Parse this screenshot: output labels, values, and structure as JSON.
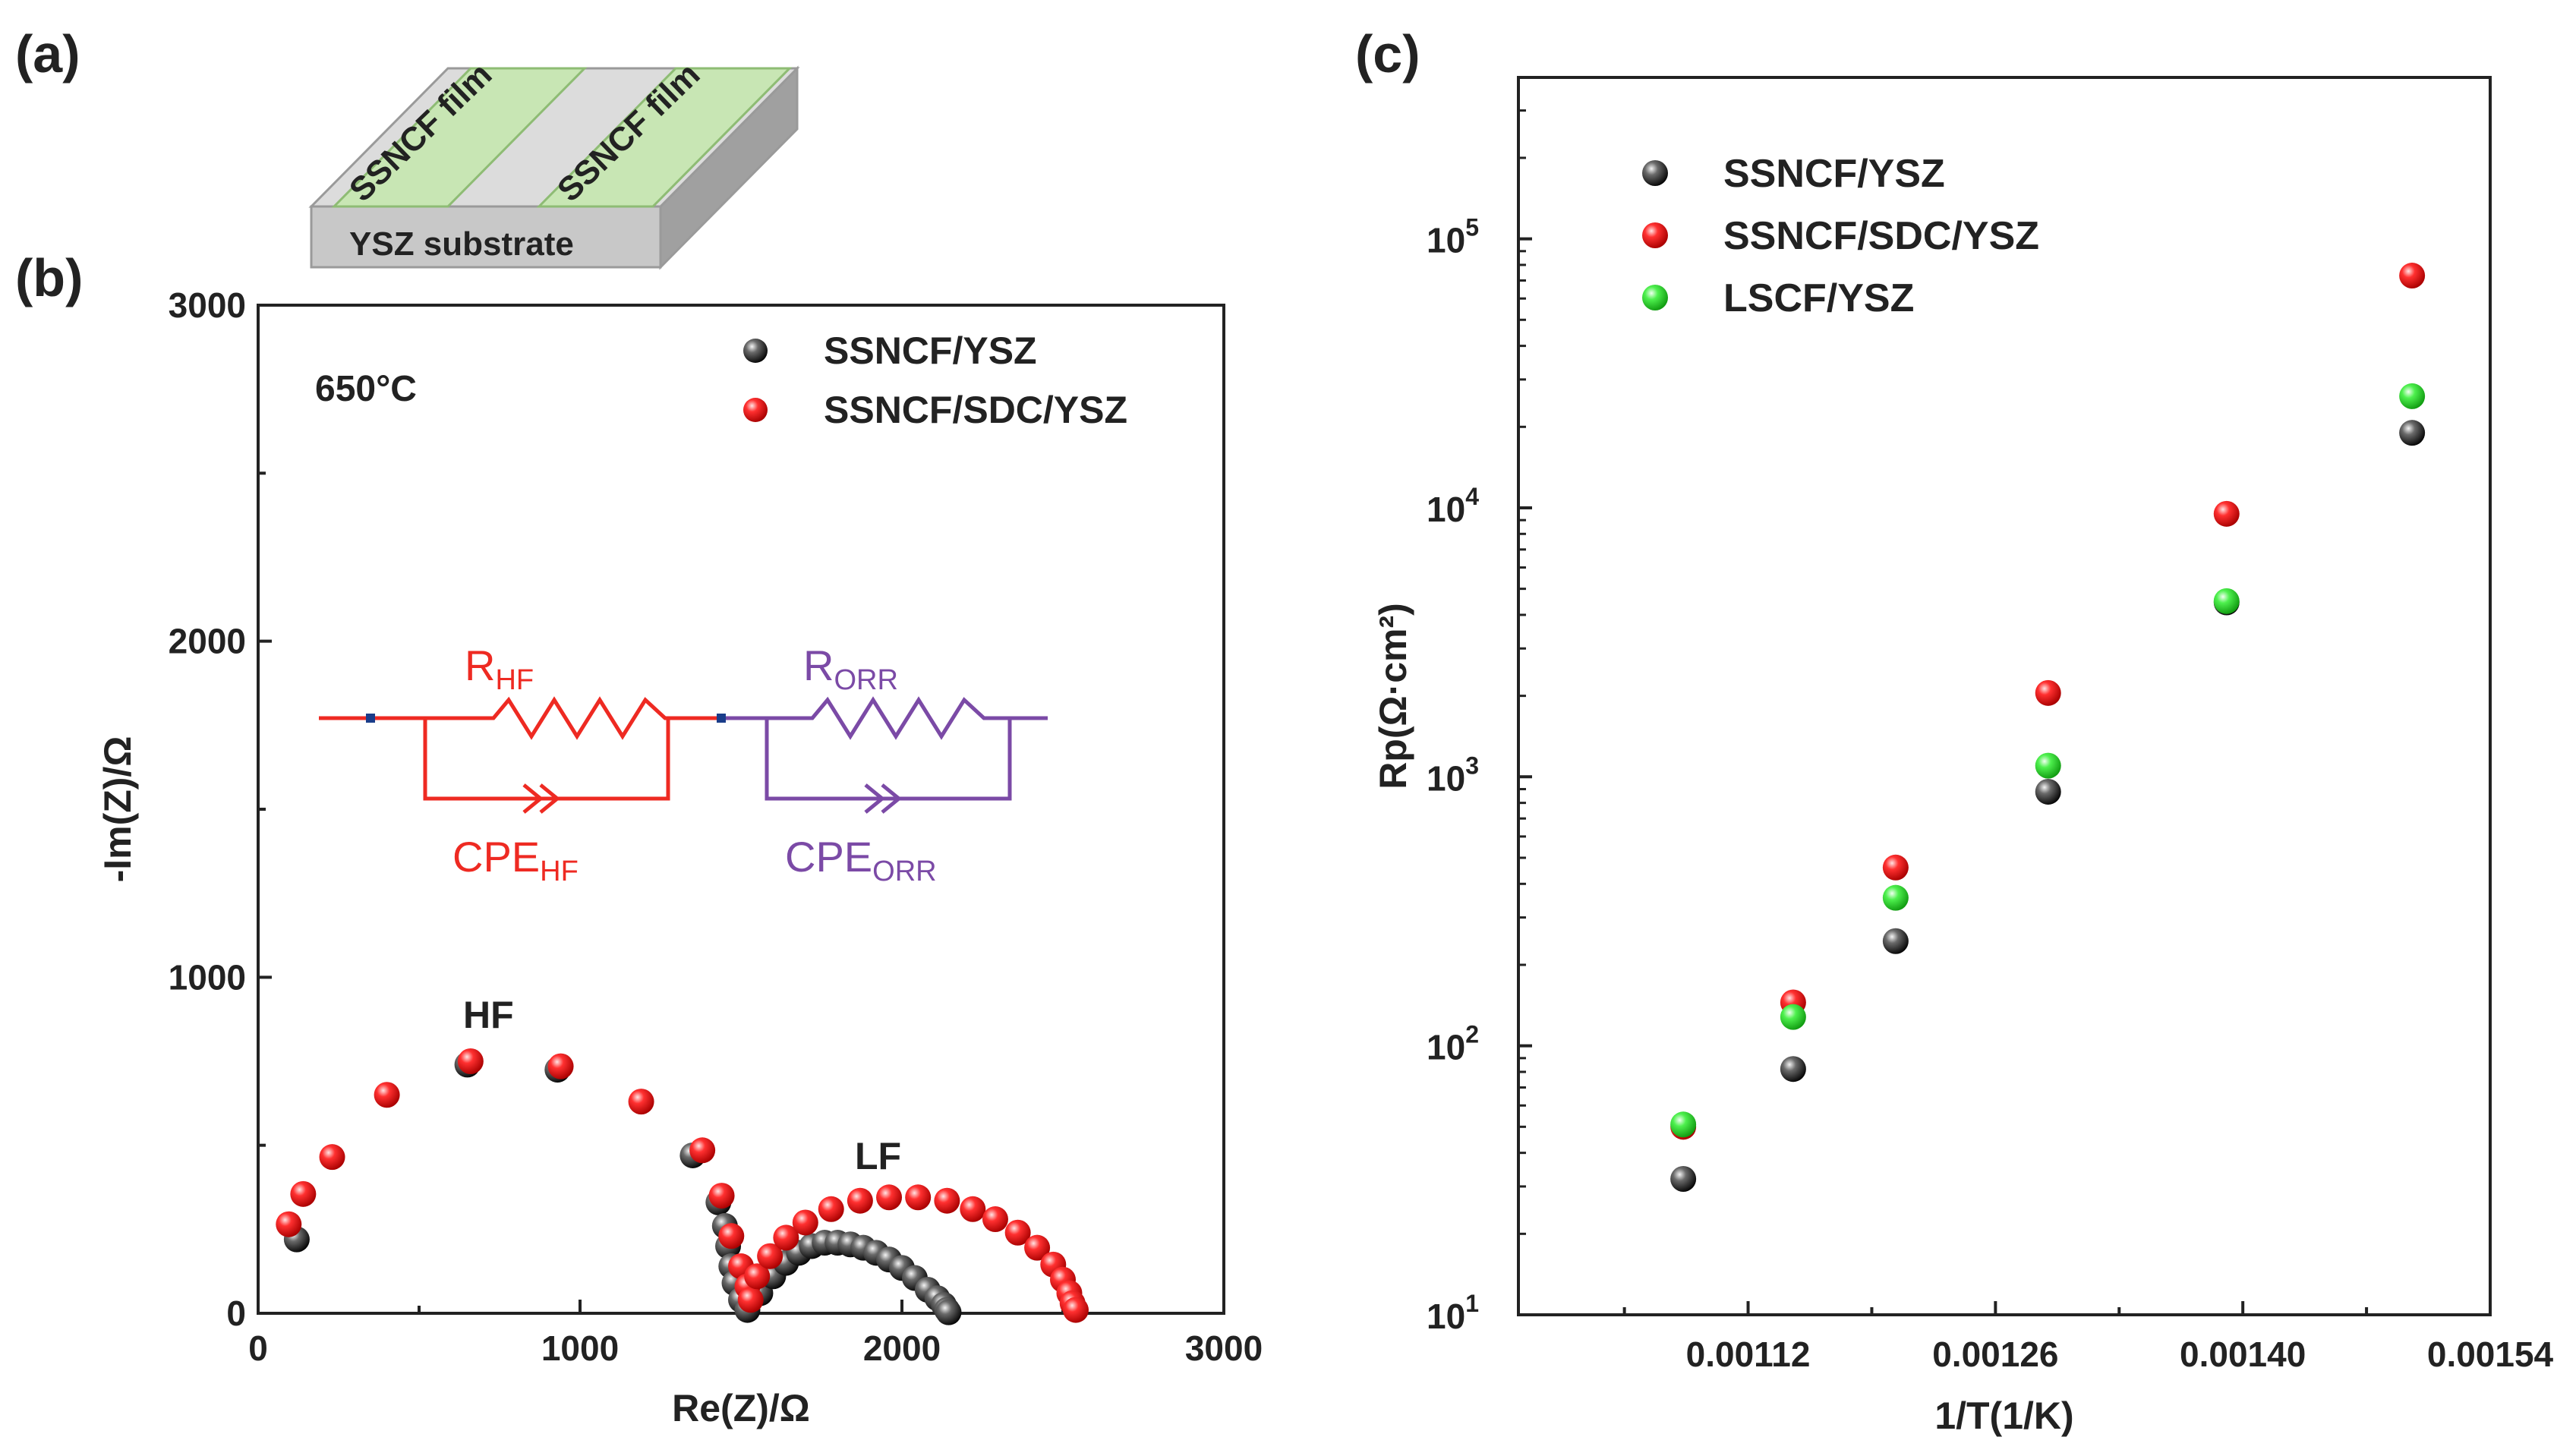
{
  "panels": {
    "a": {
      "label": "(a)",
      "film_left": "SSNCF film",
      "film_right": "SSNCF film",
      "substrate": "YSZ substrate",
      "film_color": "#c8e6b4",
      "substrate_color": "#c8c8c8"
    },
    "b": {
      "label": "(b)",
      "temperature": "650°C",
      "circuit": {
        "r1_main": "R",
        "r1_sub": "HF",
        "r2_main": "R",
        "r2_sub": "ORR",
        "c1_main": "CPE",
        "c1_sub": "HF",
        "c2_main": "CPE",
        "c2_sub": "ORR",
        "color1": "#ee2a22",
        "color2": "#7b4aa6"
      },
      "annotations": [
        "HF",
        "LF"
      ]
    },
    "c": {
      "label": "(c)"
    }
  },
  "chart_data": [
    {
      "panel": "b",
      "type": "scatter",
      "title": "",
      "xlabel": "Re(Z)/Ω",
      "ylabel": "-Im(Z)/Ω",
      "xlim": [
        0,
        3000
      ],
      "ylim": [
        0,
        3000
      ],
      "xticks": [
        0,
        1000,
        2000,
        3000
      ],
      "yticks": [
        0,
        1000,
        2000,
        3000
      ],
      "legend_position": "top-right",
      "series": [
        {
          "name": "SSNCF/YSZ",
          "color": "#111111",
          "x": [
            120,
            650,
            930,
            1350,
            1430,
            1450,
            1460,
            1470,
            1480,
            1500,
            1520,
            1560,
            1600,
            1640,
            1680,
            1720,
            1760,
            1800,
            1840,
            1880,
            1920,
            1960,
            2000,
            2040,
            2080,
            2110,
            2130,
            2140,
            2145
          ],
          "y": [
            220,
            740,
            725,
            470,
            330,
            260,
            200,
            140,
            90,
            40,
            10,
            60,
            110,
            150,
            180,
            200,
            210,
            210,
            205,
            195,
            180,
            160,
            135,
            105,
            70,
            45,
            25,
            10,
            3
          ]
        },
        {
          "name": "SSNCF/SDC/YSZ",
          "color": "#ee1c1c",
          "x": [
            95,
            140,
            230,
            400,
            660,
            940,
            1190,
            1380,
            1440,
            1470,
            1500,
            1520,
            1530,
            1550,
            1590,
            1640,
            1700,
            1780,
            1870,
            1960,
            2050,
            2140,
            2220,
            2290,
            2360,
            2420,
            2470,
            2500,
            2520,
            2530,
            2540
          ],
          "y": [
            265,
            355,
            465,
            650,
            750,
            735,
            630,
            485,
            350,
            230,
            140,
            80,
            40,
            110,
            170,
            225,
            270,
            310,
            335,
            345,
            345,
            335,
            310,
            280,
            240,
            195,
            145,
            100,
            60,
            30,
            10
          ]
        }
      ]
    },
    {
      "panel": "c",
      "type": "scatter",
      "title": "",
      "xlabel": "1/T(1/K)",
      "ylabel": "Rp(Ω·cm²)",
      "xlim": [
        0.00099,
        0.00154
      ],
      "ylim_log10": [
        1,
        5.6
      ],
      "y_scale": "log",
      "xticks": [
        "0.00112",
        "0.00126",
        "0.00140",
        "0.00154"
      ],
      "xtick_values": [
        0.00112,
        0.00126,
        0.0014,
        0.00154
      ],
      "yticks": [
        "10",
        "10",
        "10",
        "10",
        "10"
      ],
      "ytick_exponents": [
        "1",
        "2",
        "3",
        "4",
        "5"
      ],
      "ytick_log10": [
        1,
        2,
        3,
        4,
        5
      ],
      "legend_position": "top-left",
      "series": [
        {
          "name": "SSNCF/YSZ",
          "color": "#111111",
          "x": [
            0.0010833,
            0.0011455,
            0.0012035,
            0.0012898,
            0.0013908,
            0.0014958
          ],
          "y": [
            32,
            82,
            245,
            880,
            4450,
            19000
          ]
        },
        {
          "name": "SSNCF/SDC/YSZ",
          "color": "#ee1c1c",
          "x": [
            0.0010833,
            0.0011455,
            0.0012035,
            0.0012898,
            0.0013908,
            0.0014958
          ],
          "y": [
            50,
            145,
            460,
            2050,
            9500,
            73000
          ]
        },
        {
          "name": "LSCF/YSZ",
          "color": "#2ed82e",
          "x": [
            0.0010833,
            0.0011455,
            0.0012035,
            0.0012898,
            0.0013908,
            0.0014958
          ],
          "y": [
            51,
            128,
            355,
            1100,
            4500,
            26000
          ]
        }
      ]
    }
  ]
}
